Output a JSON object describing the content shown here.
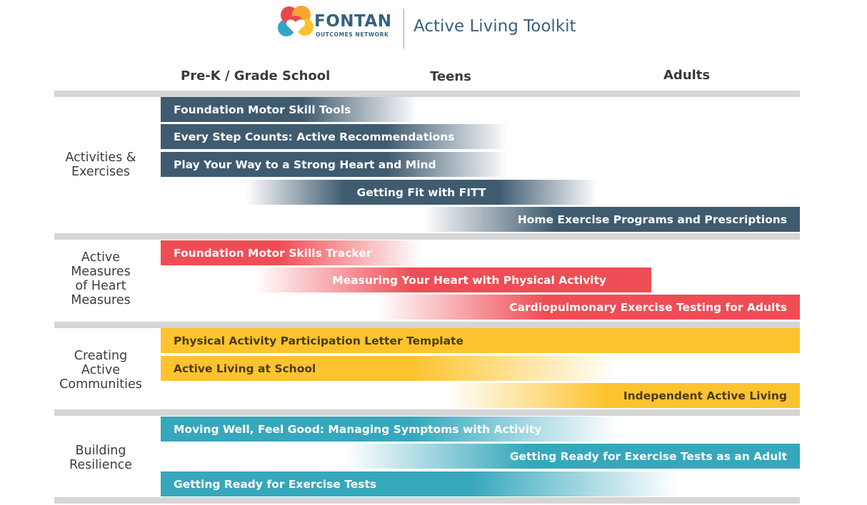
{
  "header": {
    "brand_name": "FONTAN",
    "brand_sub": "OUTCOMES NETWORK",
    "title": "Active Living Toolkit"
  },
  "colors": {
    "navy": "#3f5b70",
    "red": "#ef4d55",
    "yellow": "#fdc430",
    "teal": "#37a7bc",
    "separator": "#d6d6d6",
    "logo": [
      "#e9474f",
      "#f8a534",
      "#fdc22c",
      "#33a5c4"
    ]
  },
  "columns": [
    "Pre-K / Grade School",
    "Teens",
    "Adults"
  ],
  "groups": [
    {
      "label": "Activities & Exercises",
      "color": "navy",
      "items": [
        "Foundation Motor Skill Tools",
        "Every Step Counts: Active Recommendations",
        "Play Your Way to a Strong Heart and Mind",
        "Getting Fit with FITT",
        "Home Exercise Programs and Prescriptions"
      ]
    },
    {
      "label": "Active Measures of Heart Measures",
      "color": "red",
      "items": [
        "Foundation Motor Skills Tracker",
        "Measuring Your Heart with Physical Activity",
        "Cardiopulmonary Exercise Testing for Adults"
      ]
    },
    {
      "label": "Creating Active Communities",
      "color": "yellow",
      "items": [
        "Physical Activity Participation Letter Template",
        "Active Living at School",
        "Independent Active Living"
      ]
    },
    {
      "label": "Building Resilience",
      "color": "teal",
      "items": [
        "Moving Well, Feel Good: Managing Symptoms with Activity",
        "Getting Ready for Exercise Tests as an Adult",
        "Getting Ready for Exercise Tests"
      ]
    }
  ]
}
